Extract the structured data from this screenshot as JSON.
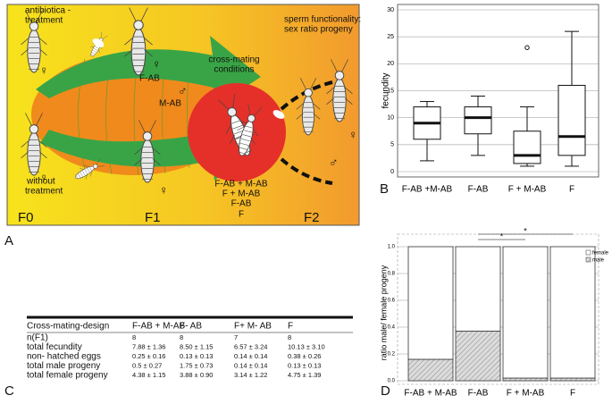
{
  "panel_labels": [
    "A",
    "B",
    "C",
    "D"
  ],
  "diagram": {
    "antibiotic_label": [
      "antibiotica -",
      "treatment"
    ],
    "untreated_label": [
      "without",
      "treatment"
    ],
    "female_treated": "F-AB",
    "male_treated": "M-AB",
    "cross_label": [
      "cross-mating",
      "conditions"
    ],
    "sperm_label": [
      "sperm functionality:",
      "sex ratio progeny"
    ],
    "conditions": [
      "F-AB + M-AB",
      "F + M-AB",
      "F-AB",
      "F"
    ],
    "generations": [
      "F0",
      "F1",
      "F2"
    ],
    "symbols": [
      "♀",
      "♀",
      "♀",
      "♂",
      "♀",
      "♂",
      "♀"
    ]
  },
  "chart_data": [
    {
      "type": "box",
      "y_label": "fecundity",
      "categories": [
        "F-AB +M-AB",
        "F-AB",
        "F + M-AB",
        "F"
      ],
      "boxes": [
        {
          "whislo": 2,
          "q1": 6,
          "med": 9,
          "q3": 12,
          "whishi": 13,
          "fliers": []
        },
        {
          "whislo": 3,
          "q1": 7,
          "med": 10,
          "q3": 12,
          "whishi": 14,
          "fliers": []
        },
        {
          "whislo": 1,
          "q1": 1.5,
          "med": 3,
          "q3": 7.5,
          "whishi": 12,
          "fliers": [
            23
          ]
        },
        {
          "whislo": 1,
          "q1": 3,
          "med": 6.5,
          "q3": 16,
          "whishi": 26,
          "fliers": []
        }
      ],
      "ylim": [
        -1,
        31
      ],
      "yticks": [
        0,
        5,
        10,
        15,
        20,
        25,
        30
      ],
      "grid": true
    },
    {
      "type": "stacked_bar",
      "y_label": "ratio male/ female progeny",
      "categories": [
        "F-AB + M-AB",
        "F-AB",
        "F + M-AB",
        "F"
      ],
      "series": [
        {
          "name": "male",
          "color": "#dcdcdc",
          "hatch": true,
          "values": [
            0.16,
            0.37,
            0.02,
            0.02
          ]
        },
        {
          "name": "female",
          "color": "#ffffff",
          "hatch": false,
          "values": [
            0.84,
            0.63,
            0.98,
            0.98
          ]
        }
      ],
      "ylim": [
        0,
        1
      ],
      "yticks": [
        {
          "value": 0,
          "label": "0.0"
        },
        0.2,
        0.4,
        0.6,
        0.8,
        {
          "value": 1,
          "label": "1.0"
        }
      ],
      "grid": true,
      "legend": "top-right",
      "annotations": [
        {
          "from": 1,
          "to": 2,
          "label": "*"
        },
        {
          "from": 1,
          "to": 3,
          "label": "*"
        }
      ]
    }
  ],
  "table": {
    "header": [
      "Cross-mating-design",
      "F-AB + M-AB",
      "F- AB",
      "F+ M- AB",
      "F"
    ],
    "rows": [
      [
        "n(F1)",
        "8",
        "8",
        "7",
        "8"
      ],
      [
        "total fecundity",
        "7.88 ± 1.36",
        "8.50 ± 1.15",
        "6.57 ± 3.24",
        "10.13 ± 3.10"
      ],
      [
        "non- hatched eggs",
        "0.25 ± 0.16",
        "0.13 ± 0.13",
        "0.14 ± 0.14",
        "0.38 ± 0.26"
      ],
      [
        "total male progeny",
        "0.5 ± 0.27",
        "1.75 ± 0.73",
        "0.14 ± 0.14",
        "0.13 ± 0.13"
      ],
      [
        "total female progeny",
        "4.38 ± 1.15",
        "3.88 ± 0.90",
        "3.14 ± 1.22",
        "4.75 ± 1.39"
      ]
    ]
  }
}
